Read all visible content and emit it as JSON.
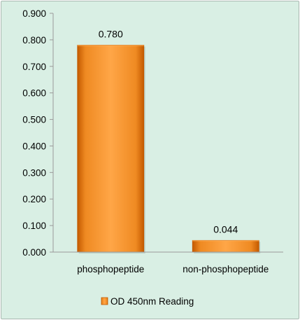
{
  "chart_data": {
    "type": "bar",
    "categories": [
      "phosphopeptide",
      "non-phosphopeptide"
    ],
    "series": [
      {
        "name": "OD 450nm Reading",
        "values": [
          0.78,
          0.044
        ]
      }
    ],
    "data_labels": [
      "0.780",
      "0.044"
    ],
    "y_ticks": [
      "0.000",
      "0.100",
      "0.200",
      "0.300",
      "0.400",
      "0.500",
      "0.600",
      "0.700",
      "0.800",
      "0.900"
    ],
    "ylim": [
      0,
      0.9
    ],
    "grid": false,
    "legend_position": "bottom",
    "colors": {
      "background": "#d9efe4",
      "bar": "#f08a1e",
      "bar_dark": "#c45a00",
      "bar_light": "#ffb35c",
      "axis": "#9a9a9a"
    }
  }
}
